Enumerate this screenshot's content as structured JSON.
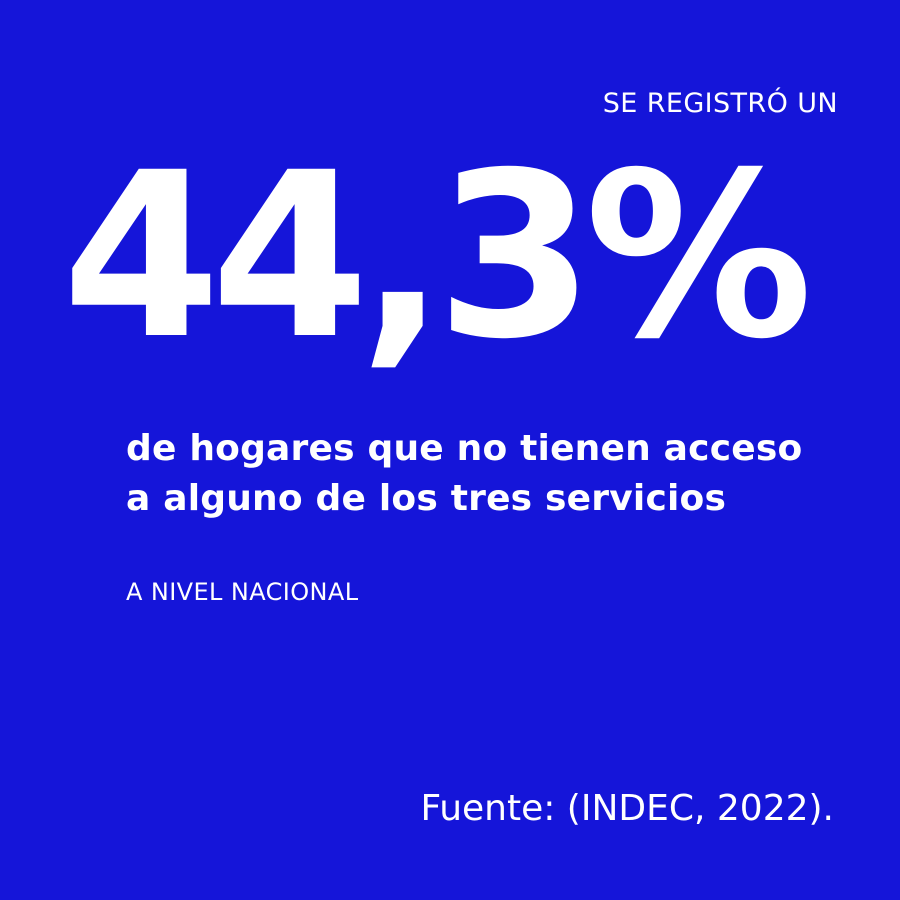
{
  "card": {
    "background_color": "#1515d9",
    "text_color": "#ffffff",
    "intro": "SE REGISTRÓ UN",
    "stat_value": "44,3%",
    "headline": "de hogares que no tienen acceso a alguno de los tres servicios",
    "subline": "A NIVEL NACIONAL",
    "source": "Fuente: (INDEC, 2022)."
  }
}
